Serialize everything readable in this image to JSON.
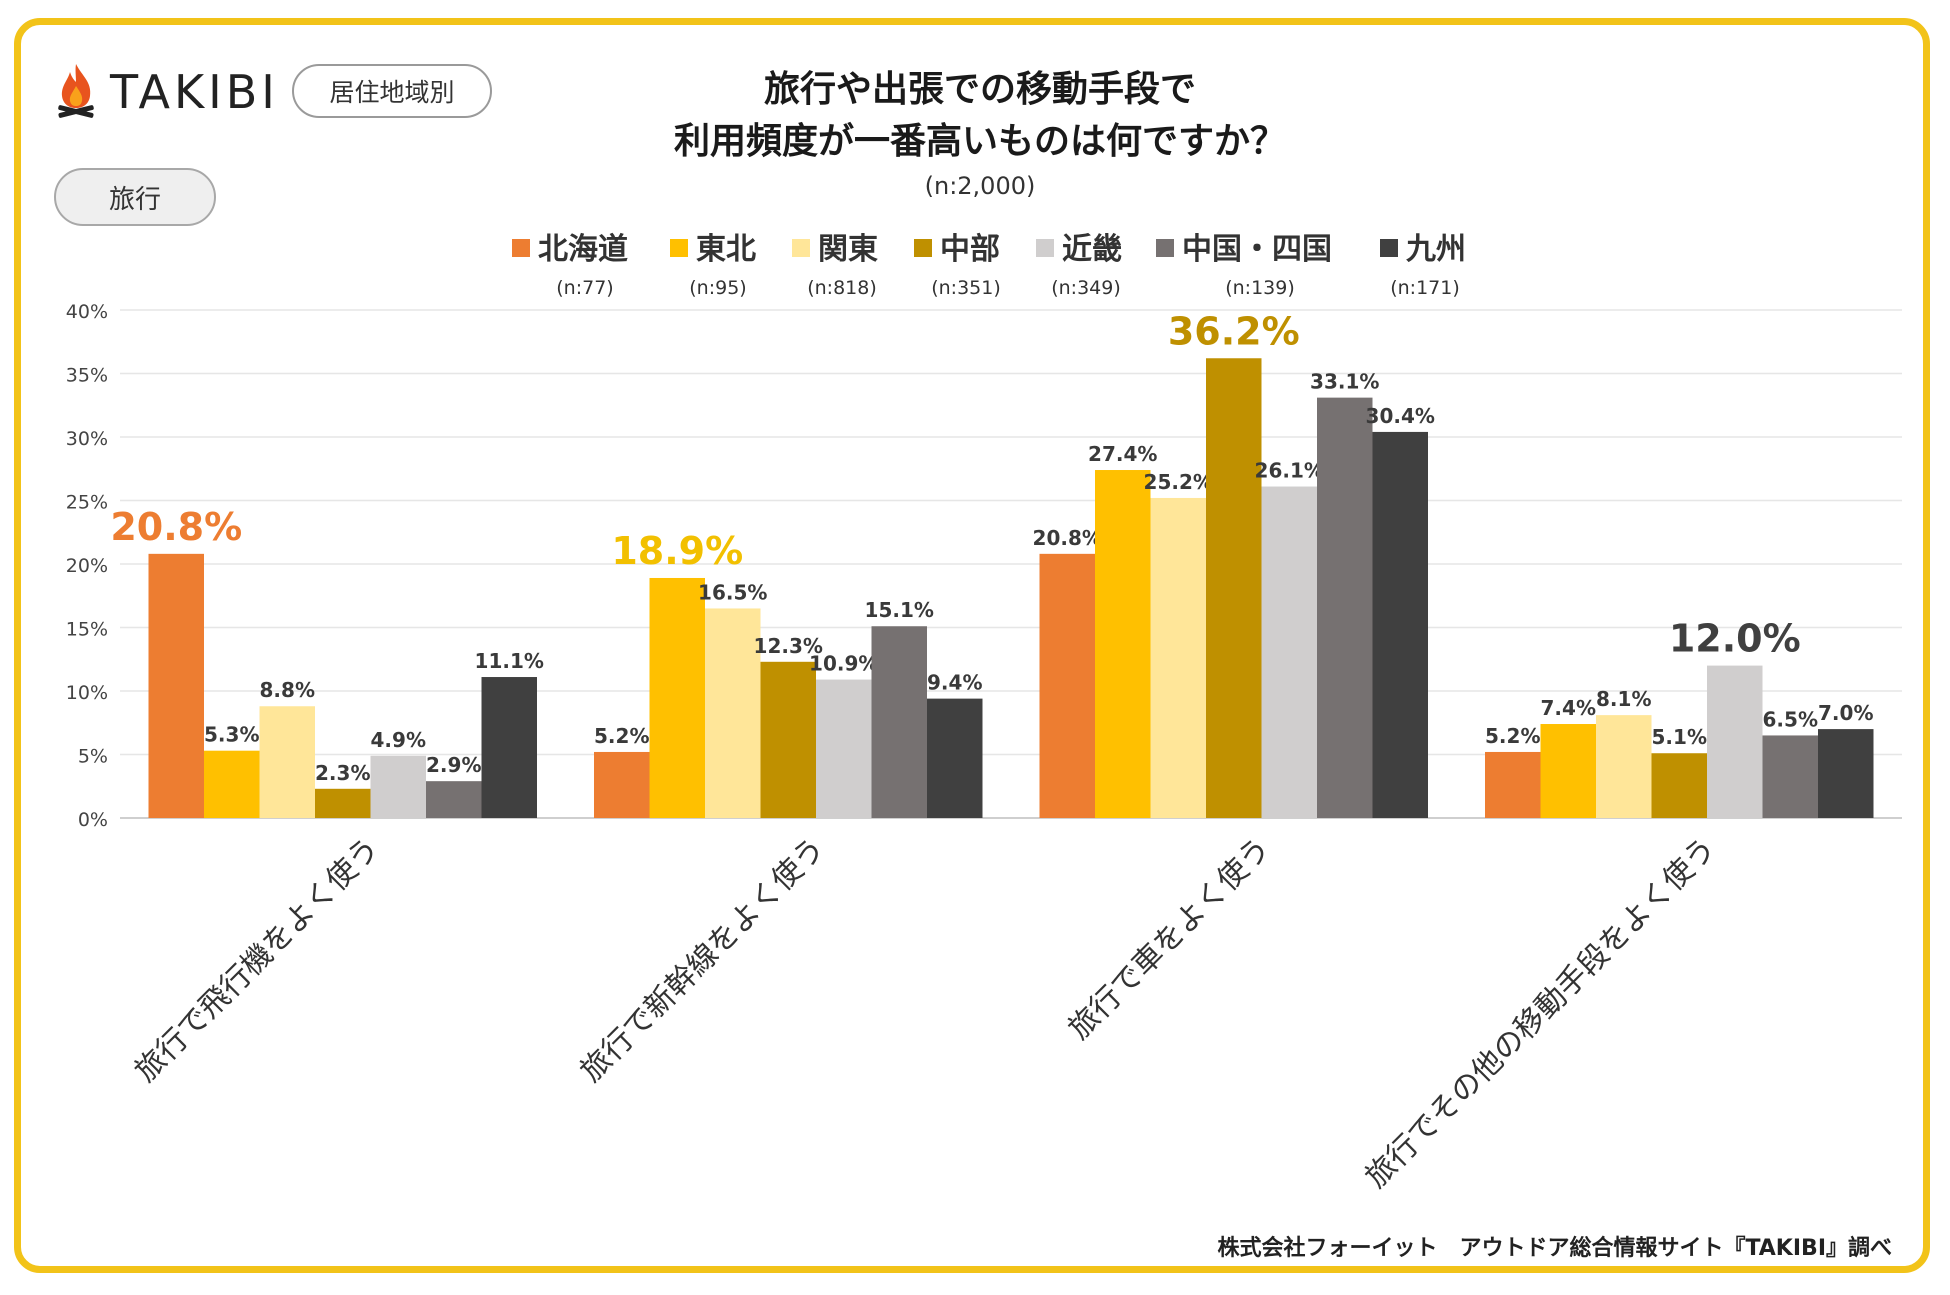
{
  "brand": {
    "name": "TAKIBI"
  },
  "header": {
    "region_tag": "居住地域別",
    "category_tag": "旅行",
    "title_line1": "旅行や出張での移動手段で",
    "title_line2": "利用頻度が一番高いものは何ですか？",
    "sample": "(n:2,000)"
  },
  "footer": {
    "credit": "株式会社フォーイット　アウトドア総合情報サイト『TAKIBI』調べ"
  },
  "chart_data": {
    "type": "bar",
    "title": "旅行や出張での移動手段で利用頻度が一番高いものは何ですか？",
    "ylim": [
      0,
      40
    ],
    "yticks": [
      "0%",
      "5%",
      "10%",
      "15%",
      "20%",
      "25%",
      "30%",
      "35%",
      "40%"
    ],
    "grid": true,
    "legend_position": "top",
    "categories": [
      "旅行で飛行機をよく使う",
      "旅行で新幹線をよく使う",
      "旅行で車をよく使う",
      "旅行でその他の移動手段をよく使う"
    ],
    "series": [
      {
        "name": "北海道",
        "n": "(n:77)",
        "color": "#ed7d31",
        "values": [
          20.8,
          5.2,
          20.8,
          5.2
        ],
        "labels": [
          "20.8%",
          "5.2%",
          "20.8%",
          "5.2%"
        ]
      },
      {
        "name": "東北",
        "n": "(n:95)",
        "color": "#ffc000",
        "values": [
          5.3,
          18.9,
          27.4,
          7.4
        ],
        "labels": [
          "5.3%",
          "18.9%",
          "27.4%",
          "7.4%"
        ]
      },
      {
        "name": "関東",
        "n": "(n:818)",
        "color": "#ffe699",
        "values": [
          8.8,
          16.5,
          25.2,
          8.1
        ],
        "labels": [
          "8.8%",
          "16.5%",
          "25.2%",
          "8.1%"
        ]
      },
      {
        "name": "中部",
        "n": "(n:351)",
        "color": "#bf9000",
        "values": [
          2.3,
          12.3,
          36.2,
          5.1
        ],
        "labels": [
          "2.3%",
          "12.3%",
          "36.2%",
          "5.1%"
        ]
      },
      {
        "name": "近畿",
        "n": "(n:349)",
        "color": "#d0cece",
        "values": [
          4.9,
          10.9,
          26.1,
          12.0
        ],
        "labels": [
          "4.9%",
          "10.9%",
          "26.1%",
          "12.0%"
        ]
      },
      {
        "name": "中国・四国",
        "n": "(n:139)",
        "color": "#767171",
        "values": [
          2.9,
          15.1,
          33.1,
          6.5
        ],
        "labels": [
          "2.9%",
          "15.1%",
          "33.1%",
          "6.5%"
        ]
      },
      {
        "name": "九州",
        "n": "(n:171)",
        "color": "#404040",
        "values": [
          11.1,
          9.4,
          30.4,
          7.0
        ],
        "labels": [
          "11.1%",
          "9.4%",
          "30.4%",
          "7.0%"
        ]
      }
    ],
    "highlights": [
      {
        "category": 0,
        "series": 0,
        "color": "#ed7d31"
      },
      {
        "category": 1,
        "series": 1,
        "color": "#f2c000"
      },
      {
        "category": 2,
        "series": 3,
        "color": "#bf9000"
      },
      {
        "category": 3,
        "series": 4,
        "color": "#404040"
      }
    ]
  }
}
